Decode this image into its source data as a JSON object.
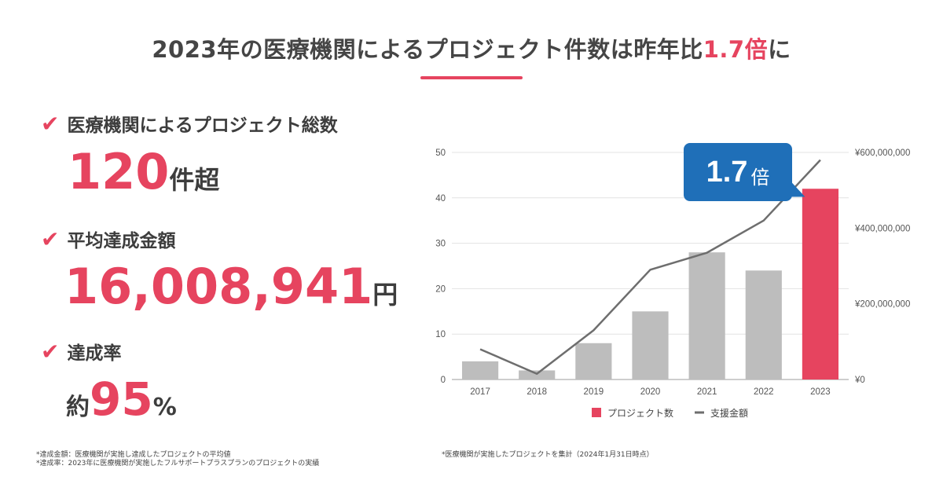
{
  "title": {
    "main": "2023年の医療機関によるプロジェクト件数は昨年比",
    "highlight": "1.7倍",
    "suffix": "に"
  },
  "stats": [
    {
      "label": "医療機関によるプロジェクト総数",
      "prefix": "",
      "value": "120",
      "unit": "件超"
    },
    {
      "label": "平均達成金額",
      "prefix": "",
      "value": "16,008,941",
      "unit": "円"
    },
    {
      "label": "達成率",
      "prefix": "約",
      "value": "95",
      "unit": "%"
    }
  ],
  "icons": {
    "check": "checkmark-icon"
  },
  "notes": {
    "left": [
      "*達成金額：医療機関が実施し達成したプロジェクトの平均値",
      "*達成率：2023年に医療機関が実施したフルサポートプラスプランのプロジェクトの実績"
    ],
    "right": "*医療機関が実施したプロジェクトを集計（2024年1月31日時点）"
  },
  "callout": {
    "value": "1.7",
    "unit": "倍"
  },
  "colors": {
    "accent": "#e6445f",
    "bar_gray": "#bdbdbd",
    "line": "#6e6e6e",
    "callout_blue": "#1f6fb8"
  },
  "chart_data": {
    "type": "bar",
    "categories": [
      "2017",
      "2018",
      "2019",
      "2020",
      "2021",
      "2022",
      "2023"
    ],
    "series": [
      {
        "name": "プロジェクト数",
        "type": "bar",
        "axis": "left",
        "values": [
          4,
          2,
          8,
          15,
          28,
          24,
          42
        ],
        "highlight_last": true
      },
      {
        "name": "支援金額",
        "type": "line",
        "axis": "right",
        "values": [
          80000000,
          15000000,
          130000000,
          290000000,
          335000000,
          420000000,
          580000000
        ]
      }
    ],
    "y_left": {
      "ticks": [
        "0",
        "10",
        "20",
        "30",
        "40",
        "50"
      ],
      "lim": [
        0,
        50
      ]
    },
    "y_right": {
      "ticks": [
        "¥0",
        "¥200,000,000",
        "¥400,000,000",
        "¥600,000,000"
      ],
      "lim": [
        0,
        600000000
      ]
    },
    "grid": true,
    "legend_position": "bottom"
  }
}
